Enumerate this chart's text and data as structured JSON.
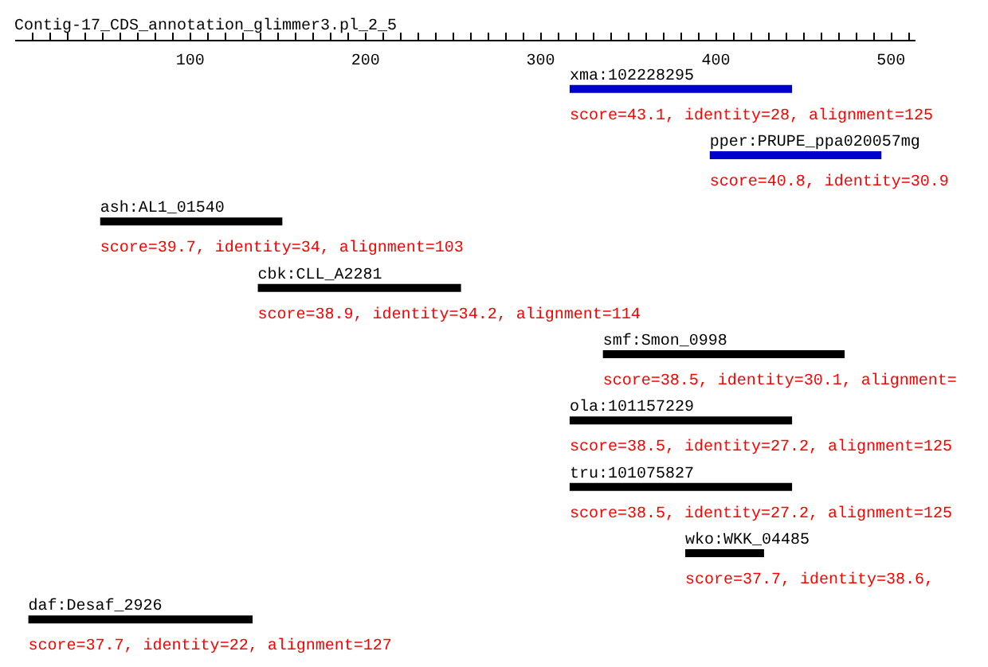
{
  "chart_data": {
    "type": "bar",
    "orientation": "horizontal",
    "title": "Contig-17_CDS_annotation_glimmer3.pl_2_5",
    "categories": [
      "xma:102228295",
      "pper:PRUPE_ppa020057mg",
      "ash:AL1_01540",
      "cbk:CLL_A2281",
      "smf:Smon_0998",
      "ola:101157229",
      "tru:101075827",
      "wko:WKK_04485",
      "daf:Desaf_2926"
    ],
    "base": [
      317,
      397,
      49,
      139,
      336,
      317,
      317,
      383,
      8
    ],
    "values": [
      127,
      98,
      104,
      116,
      138,
      127,
      127,
      45,
      128
    ],
    "colors": [
      "#0000cc",
      "#0000cc",
      "#000000",
      "#000000",
      "#000000",
      "#000000",
      "#000000",
      "#000000",
      "#000000"
    ],
    "xlim": [
      0,
      514
    ],
    "xticks": [
      {
        "value": 10,
        "label": null
      },
      {
        "value": 20,
        "label": null
      },
      {
        "value": 30,
        "label": null
      },
      {
        "value": 40,
        "label": null
      },
      {
        "value": 50,
        "label": null
      },
      {
        "value": 60,
        "label": null
      },
      {
        "value": 70,
        "label": null
      },
      {
        "value": 80,
        "label": null
      },
      {
        "value": 90,
        "label": null
      },
      100,
      {
        "value": 110,
        "label": null
      },
      {
        "value": 120,
        "label": null
      },
      {
        "value": 130,
        "label": null
      },
      {
        "value": 140,
        "label": null
      },
      {
        "value": 150,
        "label": null
      },
      {
        "value": 160,
        "label": null
      },
      {
        "value": 170,
        "label": null
      },
      {
        "value": 180,
        "label": null
      },
      {
        "value": 190,
        "label": null
      },
      200,
      {
        "value": 210,
        "label": null
      },
      {
        "value": 220,
        "label": null
      },
      {
        "value": 230,
        "label": null
      },
      {
        "value": 240,
        "label": null
      },
      {
        "value": 250,
        "label": null
      },
      {
        "value": 260,
        "label": null
      },
      {
        "value": 270,
        "label": null
      },
      {
        "value": 280,
        "label": null
      },
      {
        "value": 290,
        "label": null
      },
      300,
      {
        "value": 310,
        "label": null
      },
      {
        "value": 320,
        "label": null
      },
      {
        "value": 330,
        "label": null
      },
      {
        "value": 340,
        "label": null
      },
      {
        "value": 350,
        "label": null
      },
      {
        "value": 360,
        "label": null
      },
      {
        "value": 370,
        "label": null
      },
      {
        "value": 380,
        "label": null
      },
      {
        "value": 390,
        "label": null
      },
      400,
      {
        "value": 410,
        "label": null
      },
      {
        "value": 420,
        "label": null
      },
      {
        "value": 430,
        "label": null
      },
      {
        "value": 440,
        "label": null
      },
      {
        "value": 450,
        "label": null
      },
      {
        "value": 460,
        "label": null
      },
      {
        "value": 470,
        "label": null
      },
      {
        "value": 480,
        "label": null
      },
      {
        "value": 490,
        "label": null
      },
      500,
      {
        "value": 510,
        "label": null
      }
    ],
    "annotations": [
      "score=43.1, identity=28, alignment=125",
      "score=40.8, identity=30.9",
      "score=39.7, identity=34, alignment=103",
      "score=38.9, identity=34.2, alignment=114",
      "score=38.5, identity=30.1, alignment=",
      "score=38.5, identity=27.2, alignment=125",
      "score=38.5, identity=27.2, alignment=125",
      "score=37.7, identity=38.6,",
      "score=37.7, identity=22, alignment=127"
    ],
    "grid": false,
    "legend": false
  }
}
